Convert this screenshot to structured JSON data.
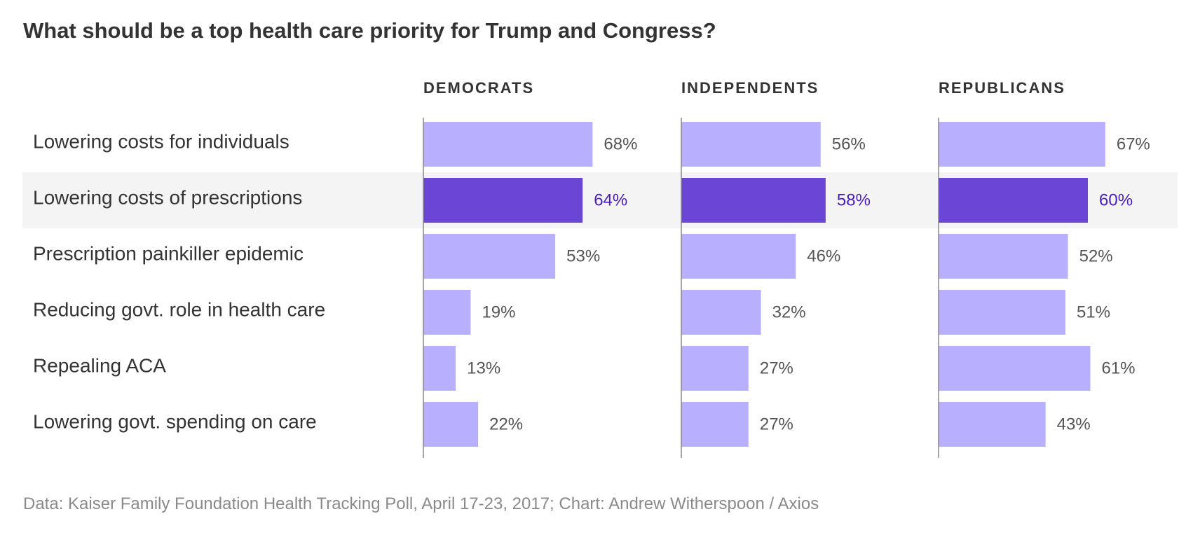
{
  "chart_data": {
    "type": "bar",
    "title": "What should be a top health care priority for Trump and Congress?",
    "categories": [
      "Lowering costs for individuals",
      "Lowering costs of prescriptions",
      "Prescription painkiller epidemic",
      "Reducing govt. role in health care",
      "Repealing ACA",
      "Lowering govt. spending on care"
    ],
    "series": [
      {
        "name": "DEMOCRATS",
        "values": [
          68,
          64,
          53,
          19,
          13,
          22
        ]
      },
      {
        "name": "INDEPENDENTS",
        "values": [
          56,
          58,
          46,
          32,
          27,
          27
        ]
      },
      {
        "name": "REPUBLICANS",
        "values": [
          67,
          60,
          52,
          51,
          61,
          43
        ]
      }
    ],
    "value_suffix": "%",
    "highlighted_category": "Lowering costs of prescriptions",
    "colors": {
      "bar": "#b8b0ff",
      "highlight_bar": "#6b45d6",
      "highlight_value_text": "#4b1fb5",
      "highlight_row_background": "#f4f4f4",
      "value_text": "#555555",
      "label_text": "#333333",
      "axis": "#888888"
    }
  },
  "source": "Data: Kaiser Family Foundation Health Tracking Poll, April 17-23, 2017; Chart: Andrew Witherspoon / Axios"
}
